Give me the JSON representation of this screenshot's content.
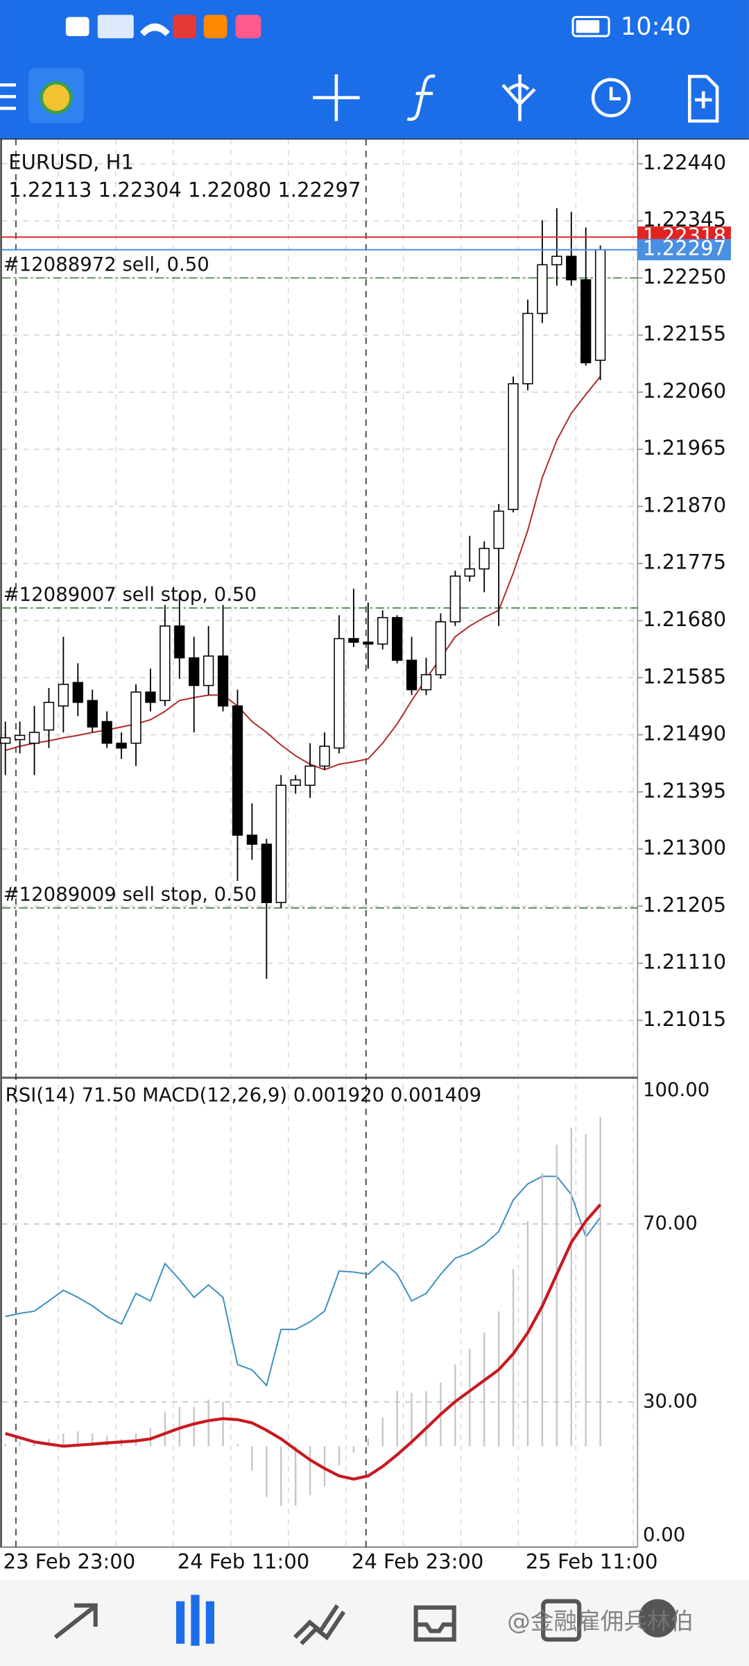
{
  "status_bar": {
    "time": "10:40"
  },
  "chart_data": [
    {
      "type": "candlestick",
      "title": "EURUSD, H1",
      "subtitle": "1.22113 1.22304 1.22080 1.22297",
      "ohlc": [
        [
          1.21476,
          1.21512,
          1.21423,
          1.21485
        ],
        [
          1.21482,
          1.21512,
          1.21459,
          1.21489
        ],
        [
          1.21476,
          1.21538,
          1.21423,
          1.21494
        ],
        [
          1.21498,
          1.21568,
          1.21468,
          1.21544
        ],
        [
          1.21538,
          1.21653,
          1.21494,
          1.21574
        ],
        [
          1.21577,
          1.21609,
          1.21521,
          1.21544
        ],
        [
          1.21547,
          1.21565,
          1.21494,
          1.21503
        ],
        [
          1.21512,
          1.21529,
          1.21468,
          1.21476
        ],
        [
          1.21476,
          1.21494,
          1.2145,
          1.21468
        ],
        [
          1.21476,
          1.21574,
          1.21438,
          1.21561
        ],
        [
          1.21561,
          1.216,
          1.21529,
          1.21544
        ],
        [
          1.21547,
          1.21706,
          1.21538,
          1.21671
        ],
        [
          1.21671,
          1.21724,
          1.21583,
          1.21618
        ],
        [
          1.21618,
          1.21653,
          1.21494,
          1.21572
        ],
        [
          1.21572,
          1.21671,
          1.21556,
          1.21621
        ],
        [
          1.21621,
          1.21706,
          1.21529,
          1.21538
        ],
        [
          1.21538,
          1.21565,
          1.21247,
          1.21323
        ],
        [
          1.21323,
          1.21376,
          1.21282,
          1.21308
        ],
        [
          1.21308,
          1.21317,
          1.21084,
          1.21211
        ],
        [
          1.21211,
          1.21423,
          1.21202,
          1.21406
        ],
        [
          1.21406,
          1.21423,
          1.21392,
          1.21415
        ],
        [
          1.21406,
          1.21476,
          1.21385,
          1.21438
        ],
        [
          1.21438,
          1.21494,
          1.21432,
          1.21471
        ],
        [
          1.21468,
          1.21689,
          1.21459,
          1.2165
        ],
        [
          1.2165,
          1.21733,
          1.21636,
          1.21644
        ],
        [
          1.21644,
          1.2171,
          1.216,
          1.21641
        ],
        [
          1.21641,
          1.21697,
          1.21632,
          1.21685
        ],
        [
          1.21685,
          1.21689,
          1.21609,
          1.21614
        ],
        [
          1.21614,
          1.21653,
          1.21556,
          1.21565
        ],
        [
          1.21565,
          1.21618,
          1.21556,
          1.2159
        ],
        [
          1.2159,
          1.21692,
          1.21583,
          1.21678
        ],
        [
          1.21678,
          1.21763,
          1.21671,
          1.21754
        ],
        [
          1.21754,
          1.21821,
          1.21745,
          1.21766
        ],
        [
          1.21766,
          1.21812,
          1.21727,
          1.218
        ],
        [
          1.218,
          1.21874,
          1.21671,
          1.21862
        ],
        [
          1.21865,
          1.22086,
          1.2186,
          1.22074
        ],
        [
          1.22074,
          1.22214,
          1.22063,
          1.22191
        ],
        [
          1.22191,
          1.22346,
          1.22175,
          1.22272
        ],
        [
          1.22272,
          1.22366,
          1.22237,
          1.22286
        ],
        [
          1.22286,
          1.2236,
          1.22237,
          1.22247
        ],
        [
          1.22247,
          1.22334,
          1.22104,
          1.22109
        ],
        [
          1.22113,
          1.22304,
          1.2208,
          1.22297
        ]
      ],
      "ma": {
        "color": "#b02a2a",
        "values": [
          1.21464,
          1.21471,
          1.21476,
          1.2148,
          1.21485,
          1.21489,
          1.21494,
          1.21498,
          1.21503,
          1.21508,
          1.21515,
          1.21529,
          1.21547,
          1.21552,
          1.21556,
          1.21556,
          1.21538,
          1.21512,
          1.21494,
          1.21473,
          1.21455,
          1.21441,
          1.21432,
          1.21441,
          1.21445,
          1.2145,
          1.21476,
          1.21508,
          1.21547,
          1.21583,
          1.21618,
          1.21653,
          1.21671,
          1.21685,
          1.21697,
          1.21759,
          1.2183,
          1.21918,
          1.2198,
          1.22025,
          1.22056,
          1.22086
        ]
      },
      "bull_color": "#ffffff",
      "bear_color": "#000000",
      "ylim": [
        1.20923,
        1.22481
      ],
      "yticks": [
        {
          "value": 1.2244,
          "label": "1.22440"
        },
        1.22345,
        {
          "value": 1.2225,
          "label": "1.22250"
        },
        1.22155,
        {
          "value": 1.2206,
          "label": "1.22060"
        },
        1.21965,
        {
          "value": 1.2187,
          "label": "1.21870"
        },
        1.21775,
        {
          "value": 1.2168,
          "label": "1.21680"
        },
        1.21585,
        {
          "value": 1.2149,
          "label": "1.21490"
        },
        1.21395,
        {
          "value": 1.213,
          "label": "1.21300"
        },
        1.21205,
        {
          "value": 1.2111,
          "label": "1.21110"
        },
        1.21015
      ],
      "grid": true,
      "price_lines": [
        {
          "value": 1.22318,
          "color": "#e02424"
        },
        {
          "value": 1.22297,
          "color": "#4a90e2"
        }
      ],
      "orders": [
        {
          "label": "#12088972 sell, 0.50",
          "value": 1.2225
        },
        {
          "label": "#12089007 sell stop, 0.50",
          "value": 1.21701
        },
        {
          "label": "#12089009 sell stop, 0.50",
          "value": 1.21202
        }
      ],
      "order_color": "#2e7d32"
    },
    {
      "type": "indicator",
      "title": "RSI(14) 71.50 MACD(12,26,9) 0.001920 0.001409",
      "ylim": [
        0,
        100
      ],
      "yticks": [
        {
          "value": 100,
          "label": "100.00"
        },
        {
          "value": 70,
          "label": "70.00"
        },
        {
          "value": 30,
          "label": "30.00"
        },
        {
          "value": 0,
          "label": "0.00"
        }
      ],
      "y2lim": [
        -0.00052,
        0.002074
      ],
      "series": [
        {
          "color": "#3a8fc0",
          "values": [
            49.2,
            49.9,
            50.4,
            52.7,
            55.1,
            53.5,
            51.6,
            49.2,
            47.5,
            54.4,
            52.7,
            61.1,
            57.5,
            53.5,
            56.3,
            53.5,
            38.4,
            37.2,
            33.7,
            46.3,
            46.3,
            48.0,
            50.4,
            59.4,
            59.2,
            58.7,
            61.6,
            58.7,
            52.7,
            54.4,
            58.7,
            62.3,
            63.5,
            65.4,
            68.3,
            75.4,
            79.0,
            80.7,
            80.7,
            76.6,
            67.1,
            71.5
          ]
        },
        {
          "color": "#c4c4c4",
          "axis": "y2",
          "values": [
            1.2e-05,
            2.5e-05,
            3.1e-05,
            4.3e-05,
            7.4e-05,
            8.7e-05,
            7.4e-05,
            6.2e-05,
            4.3e-05,
            7.4e-05,
            0.000105,
            0.000198,
            0.000229,
            0.000229,
            0.000272,
            0.00026,
            1.2e-05,
            -0.000142,
            -0.000297,
            -0.000347,
            -0.000347,
            -0.000285,
            -0.000235,
            -0.000111,
            -3.7e-05,
            4.3e-05,
            0.000167,
            0.000322,
            0.00031,
            0.000322,
            0.000371,
            0.000477,
            0.000569,
            0.000662,
            0.000786,
            0.001034,
            0.001312,
            0.001591,
            0.001758,
            0.001857,
            0.00182,
            0.00192
          ]
        },
        {
          "color": "#c8191f",
          "axis": "y2",
          "values": [
            7.4e-05,
            5e-05,
            2.5e-05,
            1.2e-05,
            0,
            6e-06,
            1.2e-05,
            1.9e-05,
            2.5e-05,
            3.1e-05,
            4.3e-05,
            7.4e-05,
            0.000105,
            0.00013,
            0.000149,
            0.000161,
            0.000155,
            0.000136,
            9.3e-05,
            4.3e-05,
            -1.9e-05,
            -8e-05,
            -0.00013,
            -0.000173,
            -0.000192,
            -0.000173,
            -0.000118,
            -5e-05,
            2.5e-05,
            0.000105,
            0.000186,
            0.00026,
            0.000322,
            0.000384,
            0.000446,
            0.000539,
            0.000662,
            0.000817,
            0.001003,
            0.001188,
            0.001312,
            0.001409
          ]
        }
      ],
      "x_labels": [
        "23 Feb 23:00",
        "24 Feb 11:00",
        "24 Feb 23:00",
        "25 Feb 11:00"
      ]
    }
  ],
  "watermark": "@金融雇佣兵林伯"
}
